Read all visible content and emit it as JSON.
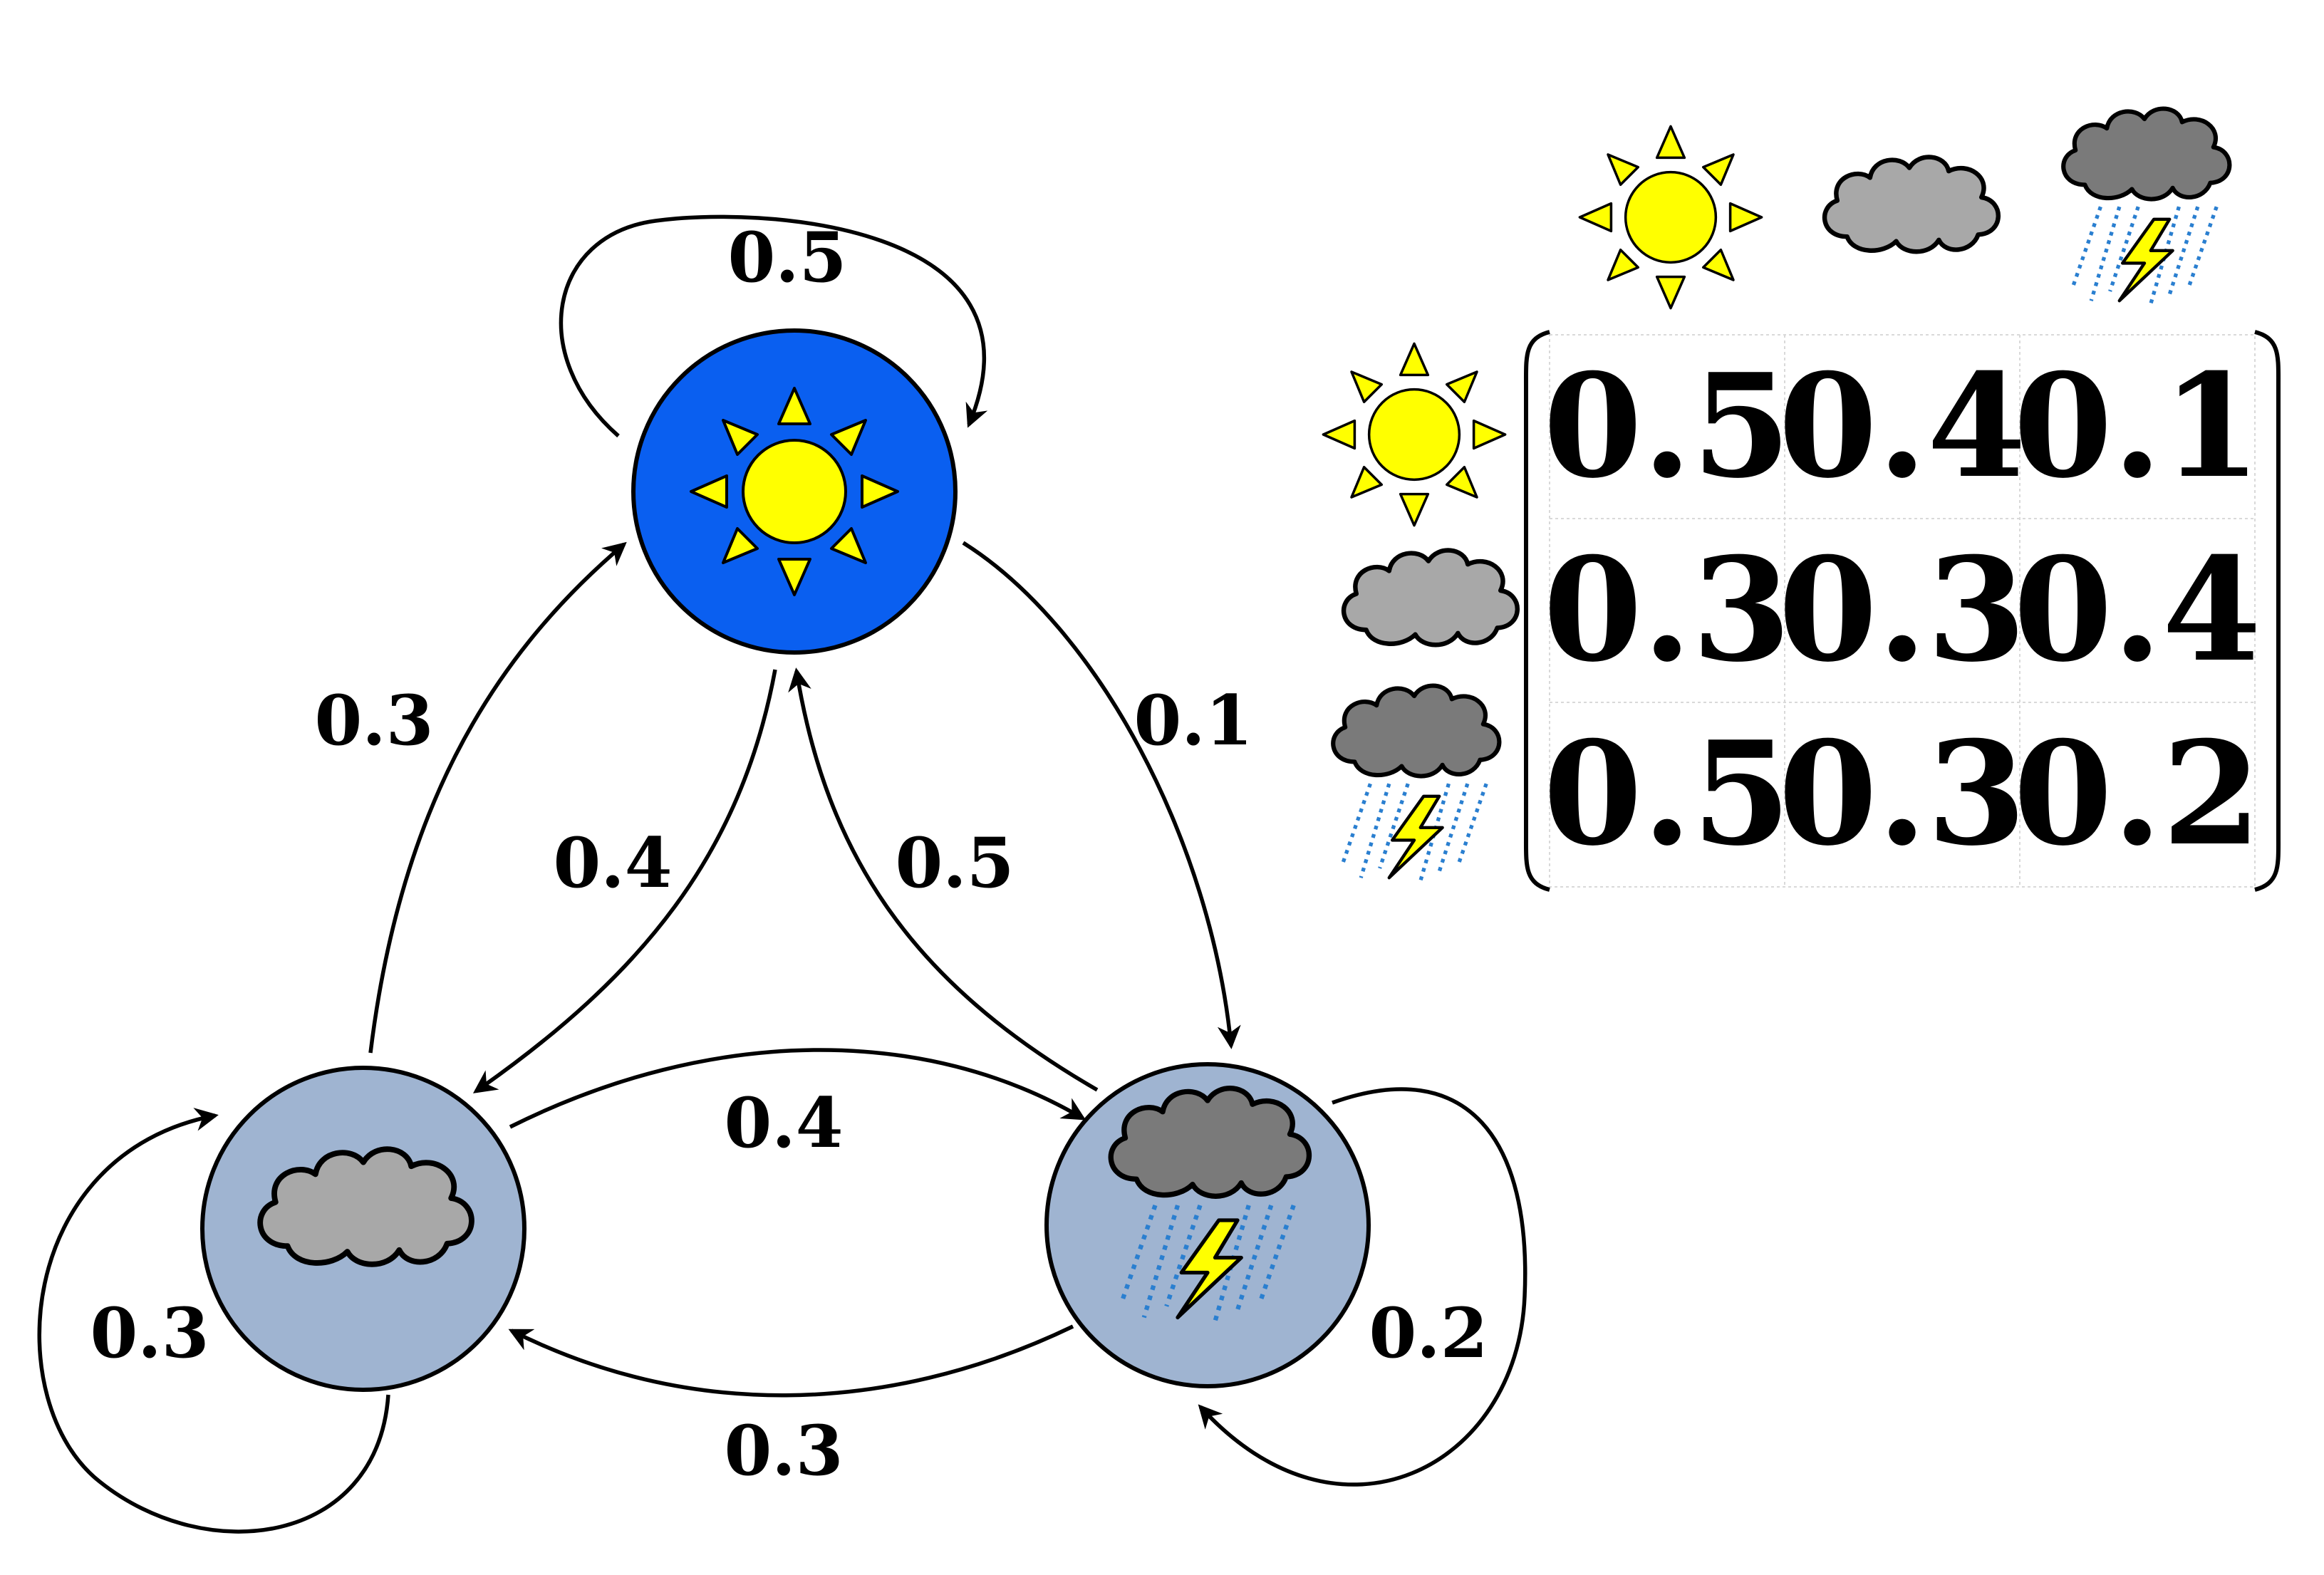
{
  "icons": {
    "sunny": "sun-icon",
    "cloudy": "cloud-icon",
    "stormy": "storm-icon"
  },
  "colors": {
    "sunny_node": "#0a5ff0",
    "other_node": "#9fb4d1",
    "sun": "#ffff00",
    "cloud_light": "#a8a8a8",
    "cloud_dark": "#7a7a7a",
    "rain": "#2a7fd0"
  },
  "edges": {
    "sunny_sunny": "0.5",
    "sunny_cloudy": "0.4",
    "sunny_stormy": "0.1",
    "cloudy_sunny": "0.3",
    "cloudy_cloudy": "0.3",
    "cloudy_stormy": "0.4",
    "stormy_sunny": "0.5",
    "stormy_cloudy": "0.3",
    "stormy_stormy": "0.2"
  },
  "matrix": [
    [
      "0.5",
      "0.4",
      "0.1"
    ],
    [
      "0.3",
      "0.3",
      "0.4"
    ],
    [
      "0.5",
      "0.3",
      "0.2"
    ]
  ]
}
